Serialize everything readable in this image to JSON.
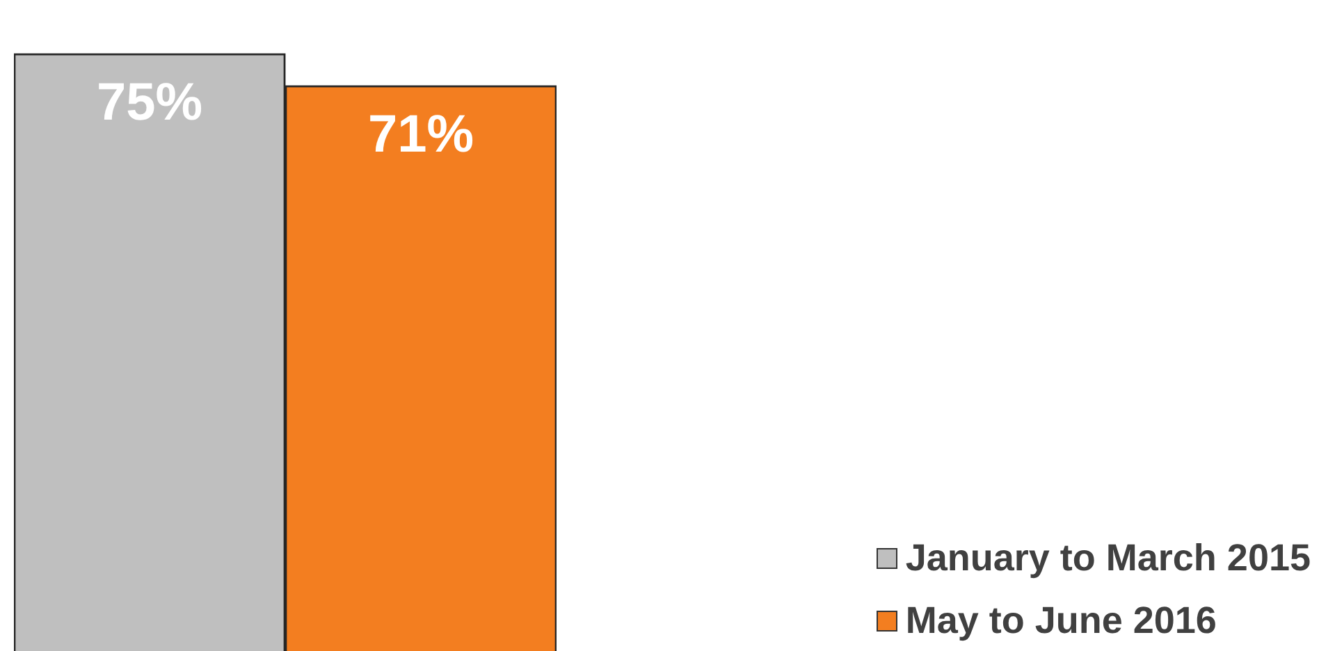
{
  "chart_data": {
    "type": "bar",
    "categories": [
      null
    ],
    "series": [
      {
        "name": "January to March 2015",
        "color": "#bfbfbf",
        "values": [
          75
        ],
        "value_labels": [
          "75%"
        ]
      },
      {
        "name": "May to June 2016",
        "color": "#f37e20",
        "values": [
          71
        ],
        "value_labels": [
          "71%"
        ]
      }
    ],
    "legend": "bottom right",
    "grid": false
  }
}
